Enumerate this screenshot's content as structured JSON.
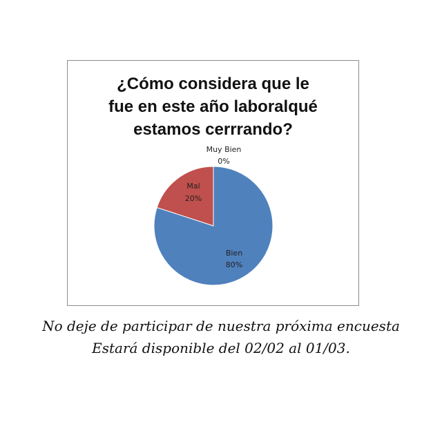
{
  "chart_data": {
    "type": "pie",
    "title_lines": [
      "¿Cómo considera que le",
      "fue en este año laboralqué",
      "estamos cerrrando?"
    ],
    "slices": [
      {
        "name": "Bien",
        "label": "80%",
        "value": 80,
        "color": "#4f81bd"
      },
      {
        "name": "Mal",
        "label": "20%",
        "value": 20,
        "color": "#c0504d"
      },
      {
        "name": "Muy Bien",
        "label": "0%",
        "value": 0,
        "color": "#9bbb59"
      }
    ]
  },
  "footer": {
    "line1": "No deje de participar de nuestra próxima encuesta",
    "line2": "Estará disponible del  02/02 al 01/03."
  }
}
